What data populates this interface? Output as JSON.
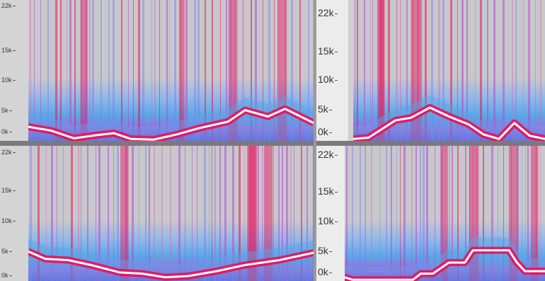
{
  "panels": [
    {
      "id": "top-left",
      "y_ticks": [
        "22k",
        "15k",
        "10k",
        "5k",
        "0k"
      ],
      "tick_values": [
        22,
        15,
        10,
        5,
        0
      ],
      "stripe_seed": 11,
      "contour": [
        [
          0,
          2.2
        ],
        [
          0.08,
          1.6
        ],
        [
          0.16,
          0.4
        ],
        [
          0.24,
          0.9
        ],
        [
          0.3,
          1.2
        ],
        [
          0.36,
          0.3
        ],
        [
          0.44,
          0.2
        ],
        [
          0.52,
          1.0
        ],
        [
          0.6,
          2.0
        ],
        [
          0.7,
          3.0
        ],
        [
          0.76,
          4.8
        ],
        [
          0.84,
          3.8
        ],
        [
          0.9,
          5.0
        ],
        [
          1,
          2.8
        ]
      ]
    },
    {
      "id": "top-right",
      "y_ticks": [
        "22k",
        "15k",
        "10k",
        "5k",
        "0k"
      ],
      "tick_values": [
        22,
        15,
        10,
        5,
        0
      ],
      "stripe_seed": 27,
      "contour": [
        [
          0,
          0.3
        ],
        [
          0.08,
          0.5
        ],
        [
          0.22,
          3.2
        ],
        [
          0.3,
          3.6
        ],
        [
          0.4,
          5.2
        ],
        [
          0.5,
          3.8
        ],
        [
          0.6,
          2.6
        ],
        [
          0.68,
          1.0
        ],
        [
          0.76,
          0.3
        ],
        [
          0.84,
          2.8
        ],
        [
          0.92,
          0.8
        ],
        [
          1,
          0.3
        ]
      ]
    },
    {
      "id": "bottom-left",
      "y_ticks": [
        "22k",
        "15k",
        "10k",
        "5k",
        "0k"
      ],
      "tick_values": [
        22,
        15,
        10,
        5,
        0
      ],
      "stripe_seed": 43,
      "contour": [
        [
          0,
          4.8
        ],
        [
          0.06,
          3.6
        ],
        [
          0.14,
          3.4
        ],
        [
          0.22,
          2.6
        ],
        [
          0.32,
          1.4
        ],
        [
          0.4,
          1.2
        ],
        [
          0.48,
          0.6
        ],
        [
          0.56,
          0.8
        ],
        [
          0.66,
          1.6
        ],
        [
          0.76,
          2.6
        ],
        [
          0.88,
          3.4
        ],
        [
          1,
          4.6
        ]
      ]
    },
    {
      "id": "bottom-right",
      "y_ticks": [
        "22k",
        "15k",
        "10k",
        "5k",
        "0k"
      ],
      "tick_values": [
        22,
        15,
        10,
        5,
        0
      ],
      "stripe_seed": 59,
      "contour": [
        [
          0,
          0.6
        ],
        [
          0.04,
          0.2
        ],
        [
          0.34,
          0.2
        ],
        [
          0.38,
          1.2
        ],
        [
          0.44,
          1.2
        ],
        [
          0.52,
          3.0
        ],
        [
          0.6,
          3.0
        ],
        [
          0.64,
          5.0
        ],
        [
          0.82,
          5.0
        ],
        [
          0.86,
          3.0
        ],
        [
          0.9,
          1.6
        ],
        [
          1,
          1.6
        ]
      ]
    }
  ],
  "colors": {
    "background": "#c9c9c9",
    "low_band": "#5aa7e6",
    "mid_band": "#b44ad2",
    "hot": "#e8125a",
    "contour": "#ffffff"
  }
}
